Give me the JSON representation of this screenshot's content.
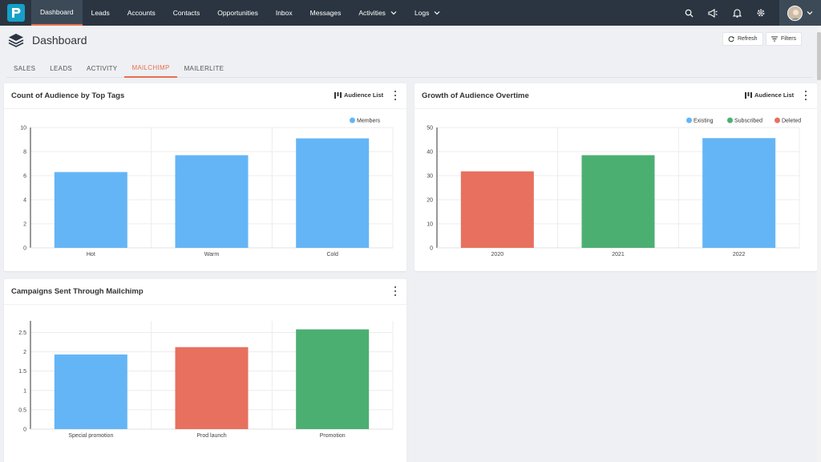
{
  "nav": {
    "items": [
      {
        "label": "Dashboard",
        "active": true,
        "dropdown": false
      },
      {
        "label": "Leads",
        "active": false,
        "dropdown": false
      },
      {
        "label": "Accounts",
        "active": false,
        "dropdown": false
      },
      {
        "label": "Contacts",
        "active": false,
        "dropdown": false
      },
      {
        "label": "Opportunities",
        "active": false,
        "dropdown": false
      },
      {
        "label": "Inbox",
        "active": false,
        "dropdown": false
      },
      {
        "label": "Messages",
        "active": false,
        "dropdown": false
      },
      {
        "label": "Activities",
        "active": false,
        "dropdown": true
      },
      {
        "label": "Logs",
        "active": false,
        "dropdown": true
      }
    ],
    "right_icons": [
      "search-icon",
      "megaphone-icon",
      "bell-icon",
      "gear-icon",
      "avatar"
    ]
  },
  "header": {
    "title": "Dashboard",
    "refresh_label": "Refresh",
    "filters_label": "Filters"
  },
  "tabs": [
    {
      "label": "SALES",
      "active": false
    },
    {
      "label": "LEADS",
      "active": false
    },
    {
      "label": "ACTIVITY",
      "active": false
    },
    {
      "label": "MAILCHIMP",
      "active": true
    },
    {
      "label": "MAILERLITE",
      "active": false
    }
  ],
  "cards": {
    "tags": {
      "title": "Count of Audience by Top Tags",
      "link": "Audience List"
    },
    "growth": {
      "title": "Growth of Audience Overtime",
      "link": "Audience List"
    },
    "campaigns": {
      "title": "Campaigns Sent Through Mailchimp"
    }
  },
  "colors": {
    "blue": "#64b5f6",
    "red": "#e8705f",
    "green": "#4caf72",
    "accent": "#e8704f",
    "nav_bg": "#2b3541"
  },
  "chart_data": [
    {
      "type": "bar",
      "title": "Count of Audience by Top Tags",
      "categories": [
        "Hot",
        "Warm",
        "Cold"
      ],
      "series": [
        {
          "name": "Members",
          "values": [
            6.3,
            7.7,
            9.1
          ],
          "color": "#64b5f6"
        }
      ],
      "ylim": [
        0,
        10
      ],
      "yticks": [
        0,
        2,
        4,
        6,
        8,
        10
      ],
      "legend": "top-right"
    },
    {
      "type": "bar",
      "title": "Growth of Audience Overtime",
      "categories": [
        "2020",
        "2021",
        "2022"
      ],
      "series": [
        {
          "name": "Existing",
          "values": [
            0,
            0,
            45.6
          ],
          "color": "#64b5f6"
        },
        {
          "name": "Subscribed",
          "values": [
            0,
            38.5,
            0
          ],
          "color": "#4caf72"
        },
        {
          "name": "Deleted",
          "values": [
            31.8,
            0,
            0
          ],
          "color": "#e8705f"
        }
      ],
      "ylim": [
        0,
        50
      ],
      "yticks": [
        0,
        10,
        20,
        30,
        40,
        50
      ],
      "legend": "top-right"
    },
    {
      "type": "bar",
      "title": "Campaigns Sent Through Mailchimp",
      "categories": [
        "Special promotion",
        "Prod launch",
        "Promotion"
      ],
      "values": [
        1.93,
        2.12,
        2.58
      ],
      "colors": [
        "#64b5f6",
        "#e8705f",
        "#4caf72"
      ],
      "ylim": [
        0,
        2.8
      ],
      "yticks": [
        0,
        0.5,
        1,
        1.5,
        2,
        2.5
      ]
    }
  ]
}
